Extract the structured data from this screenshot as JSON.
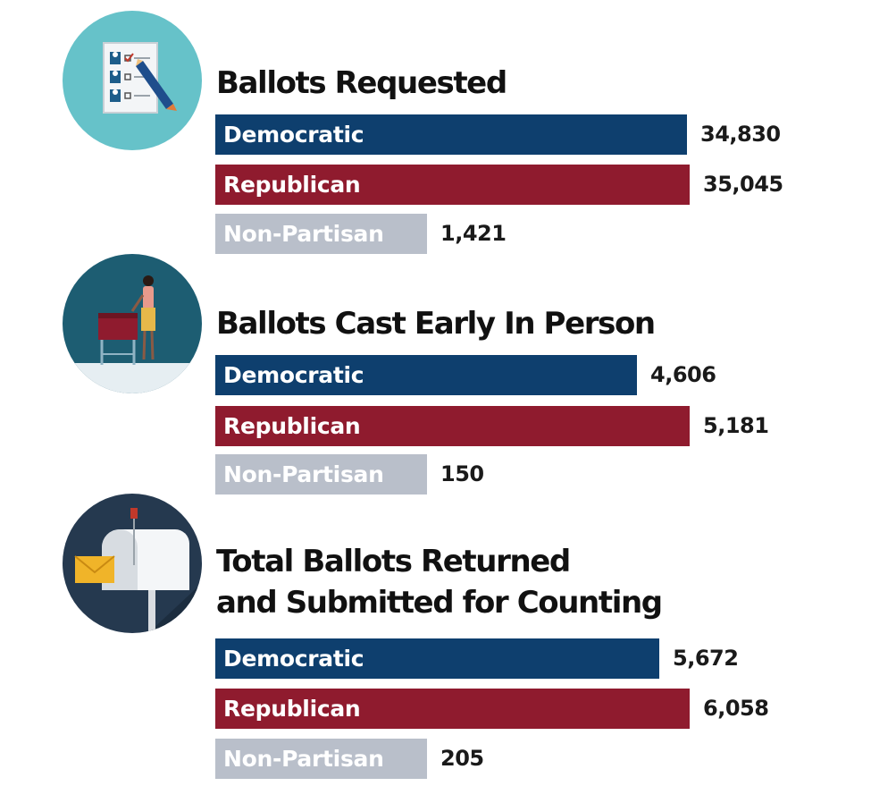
{
  "chart_data": [
    {
      "type": "bar",
      "title": "Ballots Requested",
      "icon": "ballot-form-icon",
      "categories": [
        "Democratic",
        "Republican",
        "Non-Partisan"
      ],
      "values": [
        34830,
        35045,
        1421
      ],
      "value_labels": [
        "34,830",
        "35,045",
        "1,421"
      ]
    },
    {
      "type": "bar",
      "title": "Ballots Cast Early In Person",
      "icon": "voter-at-ballot-box-icon",
      "categories": [
        "Democratic",
        "Republican",
        "Non-Partisan"
      ],
      "values": [
        4606,
        5181,
        150
      ],
      "value_labels": [
        "4,606",
        "5,181",
        "150"
      ]
    },
    {
      "type": "bar",
      "title": [
        "Total Ballots Returned",
        "and Submitted for Counting"
      ],
      "icon": "mailbox-icon",
      "categories": [
        "Democratic",
        "Republican",
        "Non-Partisan"
      ],
      "values": [
        5672,
        6058,
        205
      ],
      "value_labels": [
        "5,672",
        "6,058",
        "205"
      ]
    }
  ],
  "colors": {
    "democratic": "#0e3f6e",
    "republican": "#8f1b2e",
    "non_partisan": "#b9bfca",
    "icon_circle_1": "#66c2c9",
    "icon_circle_2": "#1d5d72",
    "icon_circle_3": "#25394f"
  }
}
